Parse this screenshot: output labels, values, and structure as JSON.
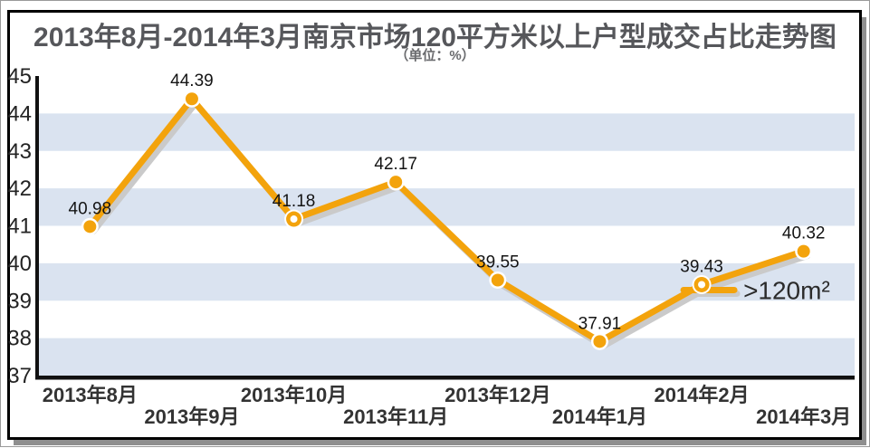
{
  "title": "2013年8月-2014年3月南京市场120平方米以上户型成交占比走势图",
  "subtitle": "（单位：%）",
  "chart_data": {
    "type": "line",
    "title": "2013年8月-2014年3月南京市场120平方米以上户型成交占比走势图",
    "unit_note": "（单位：%）",
    "categories": [
      "2013年8月",
      "2013年9月",
      "2013年10月",
      "2013年11月",
      "2013年12月",
      "2014年1月",
      "2014年2月",
      "2014年3月"
    ],
    "series": [
      {
        "name": ">120m²",
        "values": [
          40.98,
          44.39,
          41.18,
          42.17,
          39.55,
          37.91,
          39.43,
          40.32
        ]
      }
    ],
    "value_labels": [
      "40.98",
      "44.39",
      "41.18",
      "42.17",
      "39.55",
      "37.91",
      "39.43",
      "40.32"
    ],
    "xlabel": "",
    "ylabel": "",
    "ylim": [
      37,
      45
    ],
    "yticks": [
      45,
      44,
      43,
      42,
      41,
      40,
      39,
      38,
      37
    ],
    "x_label_rows": [
      0,
      1,
      0,
      1,
      0,
      1,
      0,
      1
    ],
    "hollow_marker_indexes": [
      2,
      6
    ],
    "grid": "alternating-horizontal-bands",
    "legend": {
      "label": ">120m²",
      "position": "inline-next-to-7th-point"
    },
    "colors": {
      "line": "#f3a30c",
      "line_shadow": "#cacaca",
      "band": "#dae3f0",
      "axis": "#111111",
      "title_text": "#56575b",
      "ytick_text": "#232323",
      "xtick_text": "#333333",
      "value_text": "#141414",
      "legend_text": "#2b2b2b",
      "marker_ring": "#ffffff"
    }
  }
}
